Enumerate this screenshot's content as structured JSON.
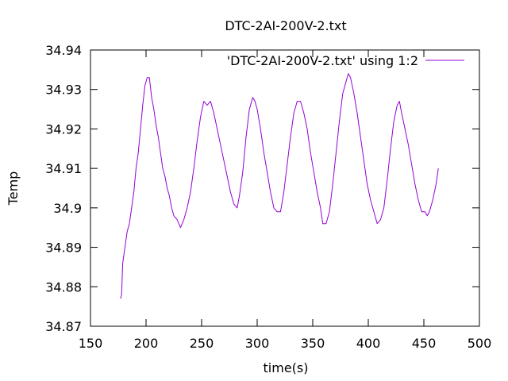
{
  "chart_data": {
    "type": "line",
    "title": "DTC-2AI-200V-2.txt",
    "xlabel": "time(s)",
    "ylabel": "Temp",
    "xlim": [
      150,
      500
    ],
    "ylim": [
      34.87,
      34.94
    ],
    "x_ticks": [
      150,
      200,
      250,
      300,
      350,
      400,
      450,
      500
    ],
    "x_tick_labels": [
      "150",
      "200",
      "250",
      "300",
      "350",
      "400",
      "450",
      "500"
    ],
    "y_ticks": [
      34.87,
      34.88,
      34.89,
      34.9,
      34.91,
      34.92,
      34.93,
      34.94
    ],
    "y_tick_labels": [
      "34.87",
      "34.88",
      "34.89",
      "34.9",
      "34.91",
      "34.92",
      "34.93",
      "34.94"
    ],
    "grid": false,
    "legend_position": "top-right",
    "series": [
      {
        "name": "'DTC-2AI-200V-2.txt' using 1:2",
        "color": "#9400d3",
        "points": [
          [
            177,
            34.877
          ],
          [
            178,
            34.878
          ],
          [
            179,
            34.886
          ],
          [
            181,
            34.89
          ],
          [
            183,
            34.894
          ],
          [
            185,
            34.896
          ],
          [
            187,
            34.9
          ],
          [
            189,
            34.904
          ],
          [
            191,
            34.91
          ],
          [
            193,
            34.914
          ],
          [
            195,
            34.92
          ],
          [
            197,
            34.926
          ],
          [
            199,
            34.931
          ],
          [
            201,
            34.933
          ],
          [
            203,
            34.933
          ],
          [
            205,
            34.928
          ],
          [
            207,
            34.925
          ],
          [
            209,
            34.921
          ],
          [
            211,
            34.918
          ],
          [
            213,
            34.914
          ],
          [
            215,
            34.91
          ],
          [
            217,
            34.908
          ],
          [
            219,
            34.905
          ],
          [
            221,
            34.903
          ],
          [
            223,
            34.9
          ],
          [
            225,
            34.898
          ],
          [
            228,
            34.897
          ],
          [
            231,
            34.895
          ],
          [
            234,
            34.897
          ],
          [
            237,
            34.9
          ],
          [
            240,
            34.904
          ],
          [
            243,
            34.91
          ],
          [
            246,
            34.917
          ],
          [
            249,
            34.923
          ],
          [
            252,
            34.927
          ],
          [
            255,
            34.926
          ],
          [
            258,
            34.927
          ],
          [
            261,
            34.924
          ],
          [
            264,
            34.92
          ],
          [
            267,
            34.916
          ],
          [
            270,
            34.912
          ],
          [
            273,
            34.908
          ],
          [
            276,
            34.904
          ],
          [
            279,
            34.901
          ],
          [
            282,
            34.9
          ],
          [
            284,
            34.903
          ],
          [
            287,
            34.909
          ],
          [
            290,
            34.918
          ],
          [
            293,
            34.925
          ],
          [
            296,
            34.928
          ],
          [
            298,
            34.927
          ],
          [
            300,
            34.925
          ],
          [
            303,
            34.92
          ],
          [
            306,
            34.914
          ],
          [
            309,
            34.909
          ],
          [
            312,
            34.904
          ],
          [
            315,
            34.9
          ],
          [
            318,
            34.899
          ],
          [
            321,
            34.899
          ],
          [
            324,
            34.904
          ],
          [
            327,
            34.911
          ],
          [
            330,
            34.918
          ],
          [
            333,
            34.924
          ],
          [
            336,
            34.927
          ],
          [
            339,
            34.927
          ],
          [
            342,
            34.924
          ],
          [
            345,
            34.92
          ],
          [
            348,
            34.914
          ],
          [
            351,
            34.909
          ],
          [
            354,
            34.904
          ],
          [
            357,
            34.9
          ],
          [
            359,
            34.896
          ],
          [
            362,
            34.896
          ],
          [
            365,
            34.899
          ],
          [
            368,
            34.906
          ],
          [
            371,
            34.914
          ],
          [
            374,
            34.922
          ],
          [
            377,
            34.929
          ],
          [
            380,
            34.932
          ],
          [
            382,
            34.934
          ],
          [
            384,
            34.933
          ],
          [
            387,
            34.929
          ],
          [
            390,
            34.924
          ],
          [
            393,
            34.918
          ],
          [
            396,
            34.912
          ],
          [
            399,
            34.906
          ],
          [
            402,
            34.902
          ],
          [
            405,
            34.899
          ],
          [
            408,
            34.896
          ],
          [
            411,
            34.897
          ],
          [
            414,
            34.9
          ],
          [
            417,
            34.907
          ],
          [
            420,
            34.915
          ],
          [
            423,
            34.922
          ],
          [
            426,
            34.926
          ],
          [
            428,
            34.927
          ],
          [
            430,
            34.924
          ],
          [
            433,
            34.92
          ],
          [
            436,
            34.916
          ],
          [
            439,
            34.911
          ],
          [
            442,
            34.906
          ],
          [
            445,
            34.902
          ],
          [
            448,
            34.899
          ],
          [
            451,
            34.899
          ],
          [
            453,
            34.898
          ],
          [
            455,
            34.899
          ],
          [
            458,
            34.902
          ],
          [
            461,
            34.906
          ],
          [
            463,
            34.91
          ]
        ]
      }
    ]
  }
}
